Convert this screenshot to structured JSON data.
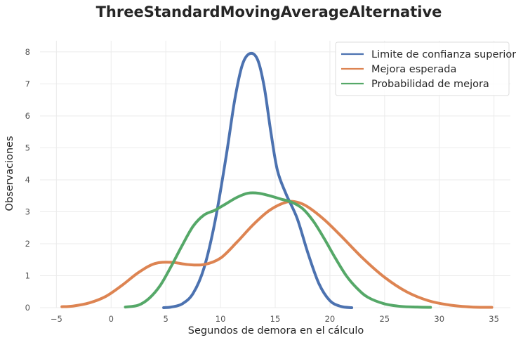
{
  "chart_data": {
    "type": "line",
    "title": "ThreeStandardMovingAverageAlternative",
    "xlabel": "Segundos de demora en el cálculo",
    "ylabel": "Observaciones",
    "xlim": [
      -6.5,
      36.5
    ],
    "ylim": [
      0,
      8.35
    ],
    "xticks": [
      -5,
      0,
      5,
      10,
      15,
      20,
      25,
      30,
      35
    ],
    "yticks": [
      0,
      1,
      2,
      3,
      4,
      5,
      6,
      7,
      8
    ],
    "x_tick_labels": [
      "−5",
      "0",
      "5",
      "10",
      "15",
      "20",
      "25",
      "30",
      "35"
    ],
    "y_tick_labels": [
      "0",
      "1",
      "2",
      "3",
      "4",
      "5",
      "6",
      "7",
      "8"
    ],
    "grid": true,
    "legend_position": "top-right",
    "series": [
      {
        "name": "Limite de confianza superior",
        "color": "#4c72b0",
        "x": [
          4.8,
          5.5,
          6.5,
          7.5,
          8.5,
          9.5,
          10.5,
          11.3,
          12.0,
          12.7,
          13.4,
          14.0,
          14.6,
          15.2,
          16.0,
          17.0,
          18.0,
          19.0,
          20.0,
          21.0,
          22.0
        ],
        "y": [
          0.0,
          0.02,
          0.12,
          0.45,
          1.25,
          2.7,
          4.7,
          6.5,
          7.6,
          7.95,
          7.75,
          6.9,
          5.5,
          4.3,
          3.55,
          2.8,
          1.7,
          0.75,
          0.22,
          0.04,
          0.0
        ]
      },
      {
        "name": "Mejora esperada",
        "color": "#dd8452",
        "x": [
          -4.5,
          -3.5,
          -2.0,
          -0.5,
          1.0,
          2.5,
          4.0,
          5.5,
          7.0,
          8.5,
          10.0,
          11.5,
          13.0,
          14.5,
          16.0,
          17.0,
          18.0,
          19.5,
          21.0,
          23.0,
          25.0,
          27.0,
          29.0,
          31.0,
          33.0,
          34.8
        ],
        "y": [
          0.03,
          0.05,
          0.15,
          0.35,
          0.7,
          1.1,
          1.38,
          1.42,
          1.35,
          1.35,
          1.55,
          2.05,
          2.6,
          3.05,
          3.3,
          3.3,
          3.15,
          2.75,
          2.25,
          1.55,
          0.95,
          0.5,
          0.22,
          0.08,
          0.02,
          0.01
        ]
      },
      {
        "name": "Probabilidad de mejora",
        "color": "#55a868",
        "x": [
          1.3,
          2.5,
          3.5,
          4.5,
          5.5,
          6.5,
          7.5,
          8.5,
          9.5,
          10.5,
          11.5,
          12.5,
          13.5,
          14.5,
          15.5,
          16.5,
          17.5,
          18.5,
          19.5,
          20.5,
          21.5,
          22.5,
          23.5,
          25.0,
          26.5,
          28.0,
          29.2
        ],
        "y": [
          0.02,
          0.08,
          0.3,
          0.7,
          1.3,
          1.95,
          2.55,
          2.9,
          3.05,
          3.25,
          3.45,
          3.58,
          3.58,
          3.5,
          3.4,
          3.3,
          3.1,
          2.7,
          2.15,
          1.55,
          1.0,
          0.6,
          0.32,
          0.12,
          0.04,
          0.02,
          0.01
        ]
      }
    ]
  }
}
